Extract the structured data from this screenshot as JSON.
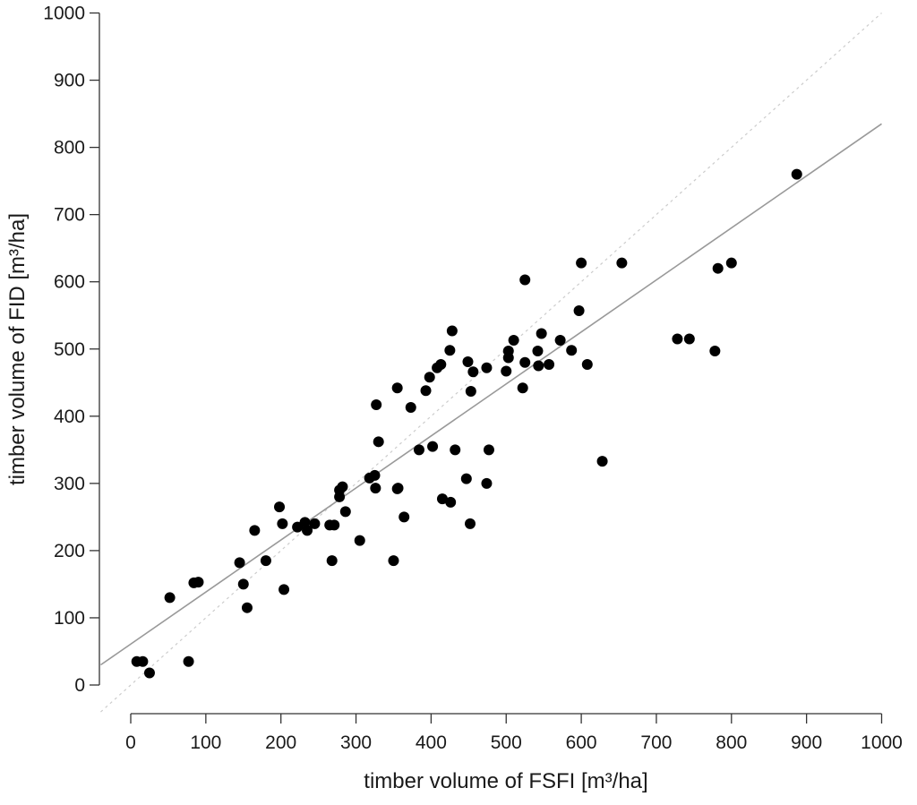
{
  "chart_data": {
    "type": "scatter",
    "xlabel": "timber volume of FSFI [m³/ha]",
    "ylabel": "timber volume of FID [m³/ha]",
    "xlim": [
      -40,
      1000
    ],
    "ylim": [
      -40,
      1000
    ],
    "x_ticks": [
      0,
      100,
      200,
      300,
      400,
      500,
      600,
      700,
      800,
      900,
      1000
    ],
    "y_ticks": [
      0,
      100,
      200,
      300,
      400,
      500,
      600,
      700,
      800,
      900,
      1000
    ],
    "grid": false,
    "legend": "none",
    "colors": {
      "points": "#000000",
      "fit_line": "#999999",
      "identity_line": "#cccccc",
      "axis": "#333333"
    },
    "regression_line": {
      "x": [
        -40,
        1000
      ],
      "y": [
        30,
        835
      ]
    },
    "identity_line": {
      "x": [
        -40,
        1000
      ],
      "y": [
        -40,
        1000
      ]
    },
    "points": [
      [
        8,
        35
      ],
      [
        16,
        35
      ],
      [
        25,
        18
      ],
      [
        52,
        130
      ],
      [
        77,
        35
      ],
      [
        84,
        152
      ],
      [
        90,
        153
      ],
      [
        145,
        182
      ],
      [
        150,
        150
      ],
      [
        155,
        115
      ],
      [
        165,
        230
      ],
      [
        180,
        185
      ],
      [
        198,
        265
      ],
      [
        202,
        240
      ],
      [
        204,
        142
      ],
      [
        222,
        235
      ],
      [
        232,
        242
      ],
      [
        235,
        230
      ],
      [
        245,
        240
      ],
      [
        265,
        238
      ],
      [
        268,
        185
      ],
      [
        271,
        238
      ],
      [
        278,
        290
      ],
      [
        278,
        280
      ],
      [
        282,
        295
      ],
      [
        286,
        258
      ],
      [
        305,
        215
      ],
      [
        318,
        308
      ],
      [
        325,
        312
      ],
      [
        326,
        293
      ],
      [
        327,
        417
      ],
      [
        330,
        362
      ],
      [
        350,
        185
      ],
      [
        355,
        292
      ],
      [
        355,
        442
      ],
      [
        356,
        293
      ],
      [
        364,
        250
      ],
      [
        373,
        413
      ],
      [
        384,
        350
      ],
      [
        393,
        438
      ],
      [
        398,
        458
      ],
      [
        402,
        355
      ],
      [
        408,
        472
      ],
      [
        413,
        477
      ],
      [
        415,
        277
      ],
      [
        425,
        498
      ],
      [
        426,
        272
      ],
      [
        428,
        527
      ],
      [
        432,
        350
      ],
      [
        447,
        307
      ],
      [
        449,
        481
      ],
      [
        452,
        240
      ],
      [
        453,
        437
      ],
      [
        456,
        466
      ],
      [
        474,
        300
      ],
      [
        474,
        472
      ],
      [
        477,
        350
      ],
      [
        500,
        467
      ],
      [
        503,
        497
      ],
      [
        503,
        487
      ],
      [
        510,
        513
      ],
      [
        522,
        442
      ],
      [
        525,
        603
      ],
      [
        525,
        480
      ],
      [
        542,
        497
      ],
      [
        543,
        475
      ],
      [
        547,
        523
      ],
      [
        557,
        477
      ],
      [
        572,
        513
      ],
      [
        587,
        498
      ],
      [
        597,
        557
      ],
      [
        600,
        628
      ],
      [
        608,
        477
      ],
      [
        628,
        333
      ],
      [
        654,
        628
      ],
      [
        728,
        515
      ],
      [
        744,
        515
      ],
      [
        778,
        497
      ],
      [
        782,
        620
      ],
      [
        800,
        628
      ],
      [
        887,
        760
      ]
    ]
  }
}
